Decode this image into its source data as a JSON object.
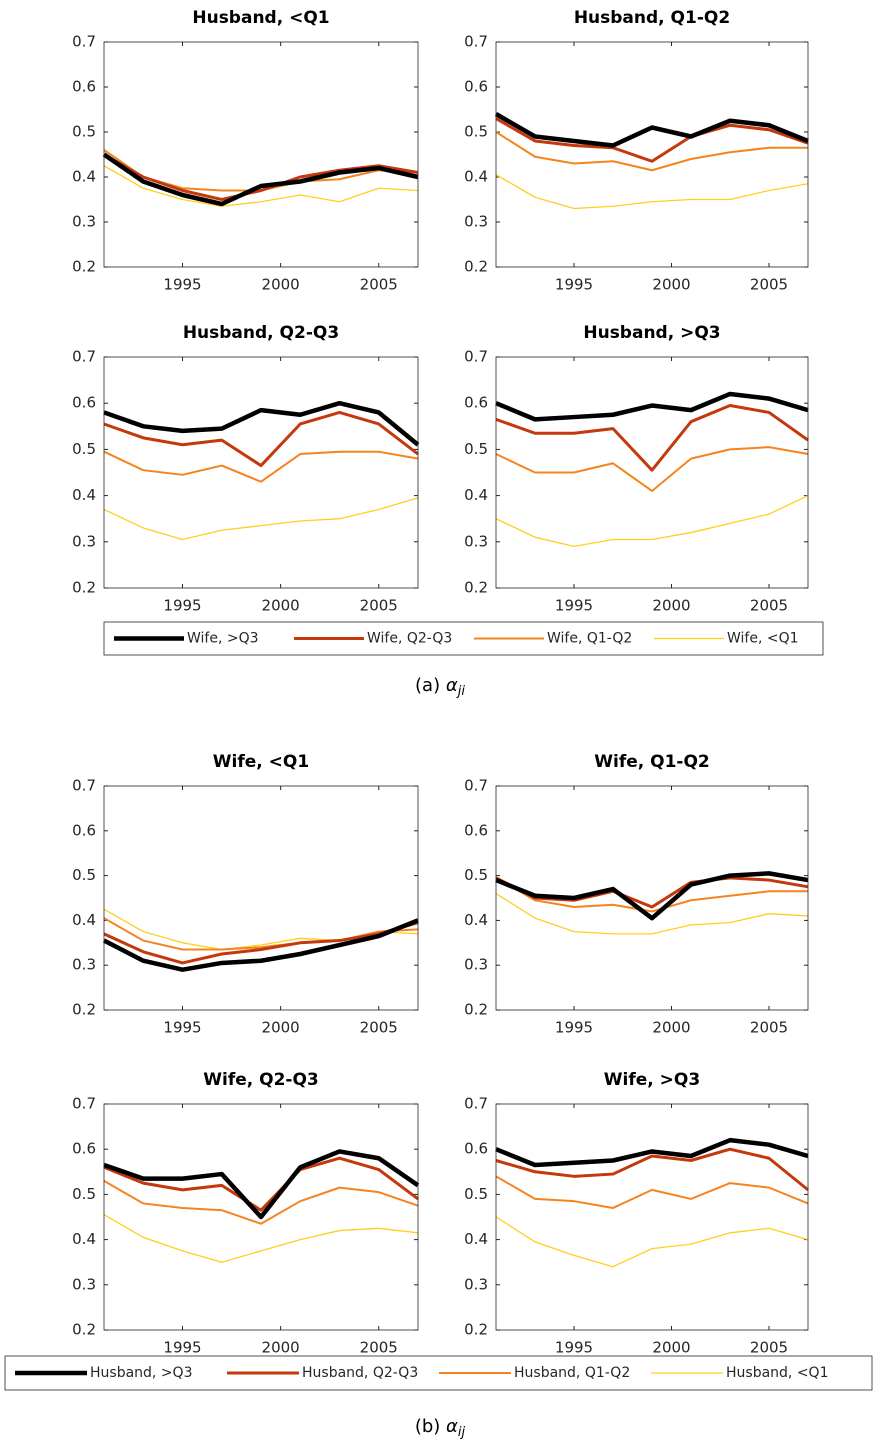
{
  "chart_data": [
    {
      "type": "line",
      "title": "Husband, <Q1",
      "x": [
        1991,
        1993,
        1995,
        1997,
        1999,
        2001,
        2003,
        2005,
        2007
      ],
      "xlim": [
        1991,
        2007
      ],
      "xticks": [
        1995,
        2000,
        2005
      ],
      "ylim": [
        0.2,
        0.7
      ],
      "yticks": [
        0.2,
        0.3,
        0.4,
        0.5,
        0.6,
        0.7
      ],
      "series": [
        {
          "name": "Wife, >Q3",
          "color": "#000000",
          "values": [
            0.45,
            0.39,
            0.36,
            0.34,
            0.38,
            0.39,
            0.41,
            0.42,
            0.4
          ]
        },
        {
          "name": "Wife, Q2-Q3",
          "color": "#c4380c",
          "values": [
            0.45,
            0.4,
            0.37,
            0.35,
            0.37,
            0.4,
            0.415,
            0.425,
            0.41
          ]
        },
        {
          "name": "Wife, Q1-Q2",
          "color": "#f5841f",
          "values": [
            0.46,
            0.4,
            0.375,
            0.37,
            0.37,
            0.39,
            0.395,
            0.415,
            0.41
          ]
        },
        {
          "name": "Wife, <Q1",
          "color": "#ffcf1f",
          "values": [
            0.425,
            0.375,
            0.35,
            0.335,
            0.345,
            0.36,
            0.345,
            0.375,
            0.37
          ]
        }
      ]
    },
    {
      "type": "line",
      "title": "Husband, Q1-Q2",
      "x": [
        1991,
        1993,
        1995,
        1997,
        1999,
        2001,
        2003,
        2005,
        2007
      ],
      "xlim": [
        1991,
        2007
      ],
      "xticks": [
        1995,
        2000,
        2005
      ],
      "ylim": [
        0.2,
        0.7
      ],
      "yticks": [
        0.2,
        0.3,
        0.4,
        0.5,
        0.6,
        0.7
      ],
      "series": [
        {
          "name": "Wife, >Q3",
          "color": "#000000",
          "values": [
            0.54,
            0.49,
            0.48,
            0.47,
            0.51,
            0.49,
            0.525,
            0.515,
            0.48
          ]
        },
        {
          "name": "Wife, Q2-Q3",
          "color": "#c4380c",
          "values": [
            0.53,
            0.48,
            0.47,
            0.465,
            0.435,
            0.49,
            0.515,
            0.505,
            0.475
          ]
        },
        {
          "name": "Wife, Q1-Q2",
          "color": "#f5841f",
          "values": [
            0.5,
            0.445,
            0.43,
            0.435,
            0.415,
            0.44,
            0.455,
            0.465,
            0.465
          ]
        },
        {
          "name": "Wife, <Q1",
          "color": "#ffcf1f",
          "values": [
            0.405,
            0.355,
            0.33,
            0.335,
            0.345,
            0.35,
            0.35,
            0.37,
            0.385
          ]
        }
      ]
    },
    {
      "type": "line",
      "title": "Husband, Q2-Q3",
      "x": [
        1991,
        1993,
        1995,
        1997,
        1999,
        2001,
        2003,
        2005,
        2007
      ],
      "xlim": [
        1991,
        2007
      ],
      "xticks": [
        1995,
        2000,
        2005
      ],
      "ylim": [
        0.2,
        0.7
      ],
      "yticks": [
        0.2,
        0.3,
        0.4,
        0.5,
        0.6,
        0.7
      ],
      "series": [
        {
          "name": "Wife, >Q3",
          "color": "#000000",
          "values": [
            0.58,
            0.55,
            0.54,
            0.545,
            0.585,
            0.575,
            0.6,
            0.58,
            0.51
          ]
        },
        {
          "name": "Wife, Q2-Q3",
          "color": "#c4380c",
          "values": [
            0.555,
            0.525,
            0.51,
            0.52,
            0.465,
            0.555,
            0.58,
            0.555,
            0.49
          ]
        },
        {
          "name": "Wife, Q1-Q2",
          "color": "#f5841f",
          "values": [
            0.495,
            0.455,
            0.445,
            0.465,
            0.43,
            0.49,
            0.495,
            0.495,
            0.48
          ]
        },
        {
          "name": "Wife, <Q1",
          "color": "#ffcf1f",
          "values": [
            0.37,
            0.33,
            0.305,
            0.325,
            0.335,
            0.345,
            0.35,
            0.37,
            0.395
          ]
        }
      ]
    },
    {
      "type": "line",
      "title": "Husband, >Q3",
      "x": [
        1991,
        1993,
        1995,
        1997,
        1999,
        2001,
        2003,
        2005,
        2007
      ],
      "xlim": [
        1991,
        2007
      ],
      "xticks": [
        1995,
        2000,
        2005
      ],
      "ylim": [
        0.2,
        0.7
      ],
      "yticks": [
        0.2,
        0.3,
        0.4,
        0.5,
        0.6,
        0.7
      ],
      "series": [
        {
          "name": "Wife, >Q3",
          "color": "#000000",
          "values": [
            0.6,
            0.565,
            0.57,
            0.575,
            0.595,
            0.585,
            0.62,
            0.61,
            0.585
          ]
        },
        {
          "name": "Wife, Q2-Q3",
          "color": "#c4380c",
          "values": [
            0.565,
            0.535,
            0.535,
            0.545,
            0.455,
            0.56,
            0.595,
            0.58,
            0.52
          ]
        },
        {
          "name": "Wife, Q1-Q2",
          "color": "#f5841f",
          "values": [
            0.49,
            0.45,
            0.45,
            0.47,
            0.41,
            0.48,
            0.5,
            0.505,
            0.49
          ]
        },
        {
          "name": "Wife, <Q1",
          "color": "#ffcf1f",
          "values": [
            0.35,
            0.31,
            0.29,
            0.305,
            0.305,
            0.32,
            0.34,
            0.36,
            0.4
          ]
        }
      ]
    },
    {
      "type": "line",
      "title": "Wife, <Q1",
      "x": [
        1991,
        1993,
        1995,
        1997,
        1999,
        2001,
        2003,
        2005,
        2007
      ],
      "xlim": [
        1991,
        2007
      ],
      "xticks": [
        1995,
        2000,
        2005
      ],
      "ylim": [
        0.2,
        0.7
      ],
      "yticks": [
        0.2,
        0.3,
        0.4,
        0.5,
        0.6,
        0.7
      ],
      "series": [
        {
          "name": "Husband, >Q3",
          "color": "#000000",
          "values": [
            0.355,
            0.31,
            0.29,
            0.305,
            0.31,
            0.325,
            0.345,
            0.365,
            0.4
          ]
        },
        {
          "name": "Husband, Q2-Q3",
          "color": "#c4380c",
          "values": [
            0.37,
            0.33,
            0.305,
            0.325,
            0.335,
            0.35,
            0.355,
            0.37,
            0.395
          ]
        },
        {
          "name": "Husband, Q1-Q2",
          "color": "#f5841f",
          "values": [
            0.405,
            0.355,
            0.335,
            0.335,
            0.34,
            0.35,
            0.355,
            0.375,
            0.38
          ]
        },
        {
          "name": "Husband, <Q1",
          "color": "#ffcf1f",
          "values": [
            0.425,
            0.375,
            0.35,
            0.335,
            0.345,
            0.36,
            0.355,
            0.375,
            0.37
          ]
        }
      ]
    },
    {
      "type": "line",
      "title": "Wife, Q1-Q2",
      "x": [
        1991,
        1993,
        1995,
        1997,
        1999,
        2001,
        2003,
        2005,
        2007
      ],
      "xlim": [
        1991,
        2007
      ],
      "xticks": [
        1995,
        2000,
        2005
      ],
      "ylim": [
        0.2,
        0.7
      ],
      "yticks": [
        0.2,
        0.3,
        0.4,
        0.5,
        0.6,
        0.7
      ],
      "series": [
        {
          "name": "Husband, >Q3",
          "color": "#000000",
          "values": [
            0.49,
            0.455,
            0.45,
            0.47,
            0.405,
            0.48,
            0.5,
            0.505,
            0.49
          ]
        },
        {
          "name": "Husband, Q2-Q3",
          "color": "#c4380c",
          "values": [
            0.495,
            0.45,
            0.445,
            0.465,
            0.43,
            0.485,
            0.495,
            0.49,
            0.475
          ]
        },
        {
          "name": "Husband, Q1-Q2",
          "color": "#f5841f",
          "values": [
            0.495,
            0.445,
            0.43,
            0.435,
            0.42,
            0.445,
            0.455,
            0.465,
            0.465
          ]
        },
        {
          "name": "Husband, <Q1",
          "color": "#ffcf1f",
          "values": [
            0.46,
            0.405,
            0.375,
            0.37,
            0.37,
            0.39,
            0.395,
            0.415,
            0.41
          ]
        }
      ]
    },
    {
      "type": "line",
      "title": "Wife, Q2-Q3",
      "x": [
        1991,
        1993,
        1995,
        1997,
        1999,
        2001,
        2003,
        2005,
        2007
      ],
      "xlim": [
        1991,
        2007
      ],
      "xticks": [
        1995,
        2000,
        2005
      ],
      "ylim": [
        0.2,
        0.7
      ],
      "yticks": [
        0.2,
        0.3,
        0.4,
        0.5,
        0.6,
        0.7
      ],
      "series": [
        {
          "name": "Husband, >Q3",
          "color": "#000000",
          "values": [
            0.565,
            0.535,
            0.535,
            0.545,
            0.45,
            0.56,
            0.595,
            0.58,
            0.52
          ]
        },
        {
          "name": "Husband, Q2-Q3",
          "color": "#c4380c",
          "values": [
            0.56,
            0.525,
            0.51,
            0.52,
            0.465,
            0.555,
            0.58,
            0.555,
            0.49
          ]
        },
        {
          "name": "Husband, Q1-Q2",
          "color": "#f5841f",
          "values": [
            0.53,
            0.48,
            0.47,
            0.465,
            0.435,
            0.485,
            0.515,
            0.505,
            0.475
          ]
        },
        {
          "name": "Husband, <Q1",
          "color": "#ffcf1f",
          "values": [
            0.455,
            0.405,
            0.375,
            0.35,
            0.375,
            0.4,
            0.42,
            0.425,
            0.415
          ]
        }
      ]
    },
    {
      "type": "line",
      "title": "Wife, >Q3",
      "x": [
        1991,
        1993,
        1995,
        1997,
        1999,
        2001,
        2003,
        2005,
        2007
      ],
      "xlim": [
        1991,
        2007
      ],
      "xticks": [
        1995,
        2000,
        2005
      ],
      "ylim": [
        0.2,
        0.7
      ],
      "yticks": [
        0.2,
        0.3,
        0.4,
        0.5,
        0.6,
        0.7
      ],
      "series": [
        {
          "name": "Husband, >Q3",
          "color": "#000000",
          "values": [
            0.6,
            0.565,
            0.57,
            0.575,
            0.595,
            0.585,
            0.62,
            0.61,
            0.585
          ]
        },
        {
          "name": "Husband, Q2-Q3",
          "color": "#c4380c",
          "values": [
            0.575,
            0.55,
            0.54,
            0.545,
            0.585,
            0.575,
            0.6,
            0.58,
            0.51
          ]
        },
        {
          "name": "Husband, Q1-Q2",
          "color": "#f5841f",
          "values": [
            0.54,
            0.49,
            0.485,
            0.47,
            0.51,
            0.49,
            0.525,
            0.515,
            0.48
          ]
        },
        {
          "name": "Husband, <Q1",
          "color": "#ffcf1f",
          "values": [
            0.45,
            0.395,
            0.365,
            0.34,
            0.38,
            0.39,
            0.415,
            0.425,
            0.4
          ]
        }
      ]
    }
  ],
  "captions": [
    {
      "label": "(a)",
      "symbol": "α",
      "subscript": "ji"
    },
    {
      "label": "(b)",
      "symbol": "α",
      "subscript": "ij"
    }
  ]
}
